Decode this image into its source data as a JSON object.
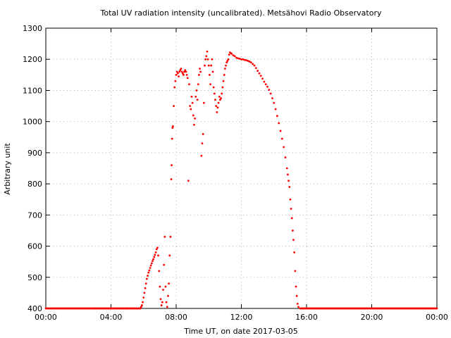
{
  "chart_data": {
    "type": "scatter",
    "title": "Total UV radiation intensity (uncalibrated). Metsähovi Radio Observatory",
    "xlabel": "Time UT, on date 2017-03-05",
    "ylabel": "Arbitrary unit",
    "x_unit": "hours UT",
    "xlim": [
      0,
      24
    ],
    "ylim": [
      400,
      1300
    ],
    "x_ticks": [
      0,
      4,
      8,
      12,
      16,
      20,
      24
    ],
    "x_tick_labels": [
      "00:00",
      "04:00",
      "08:00",
      "12:00",
      "16:00",
      "20:00",
      "00:00"
    ],
    "y_ticks": [
      400,
      500,
      600,
      700,
      800,
      900,
      1000,
      1100,
      1200,
      1300
    ],
    "y_tick_labels": [
      "400",
      "500",
      "600",
      "700",
      "800",
      "900",
      "1000",
      "1100",
      "1200",
      "1300"
    ],
    "grid": true,
    "marker_color": "#ff0000",
    "series": [
      {
        "points": [
          [
            0.0,
            400
          ],
          [
            1.0,
            400
          ],
          [
            2.0,
            400
          ],
          [
            3.0,
            400
          ],
          [
            4.0,
            400
          ],
          [
            5.0,
            400
          ],
          [
            5.8,
            400
          ],
          [
            5.85,
            405
          ],
          [
            5.9,
            410
          ],
          [
            5.95,
            420
          ],
          [
            6.0,
            435
          ],
          [
            6.05,
            450
          ],
          [
            6.1,
            465
          ],
          [
            6.15,
            480
          ],
          [
            6.2,
            495
          ],
          [
            6.25,
            505
          ],
          [
            6.3,
            515
          ],
          [
            6.35,
            522
          ],
          [
            6.4,
            530
          ],
          [
            6.45,
            538
          ],
          [
            6.5,
            545
          ],
          [
            6.55,
            552
          ],
          [
            6.6,
            558
          ],
          [
            6.65,
            565
          ],
          [
            6.7,
            572
          ],
          [
            6.75,
            580
          ],
          [
            6.8,
            590
          ],
          [
            6.85,
            595
          ],
          [
            6.9,
            570
          ],
          [
            6.95,
            520
          ],
          [
            7.0,
            470
          ],
          [
            7.05,
            430
          ],
          [
            7.1,
            410
          ],
          [
            7.15,
            420
          ],
          [
            7.2,
            460
          ],
          [
            7.25,
            540
          ],
          [
            7.3,
            630
          ],
          [
            7.35,
            470
          ],
          [
            7.4,
            420
          ],
          [
            7.45,
            405
          ],
          [
            7.5,
            440
          ],
          [
            7.55,
            480
          ],
          [
            7.6,
            570
          ],
          [
            7.65,
            630
          ],
          [
            7.7,
            815
          ],
          [
            7.72,
            860
          ],
          [
            7.75,
            945
          ],
          [
            7.78,
            980
          ],
          [
            7.8,
            985
          ],
          [
            7.85,
            1050
          ],
          [
            7.9,
            1110
          ],
          [
            7.95,
            1130
          ],
          [
            8.0,
            1150
          ],
          [
            8.05,
            1160
          ],
          [
            8.1,
            1155
          ],
          [
            8.15,
            1145
          ],
          [
            8.2,
            1160
          ],
          [
            8.25,
            1165
          ],
          [
            8.3,
            1170
          ],
          [
            8.35,
            1160
          ],
          [
            8.4,
            1155
          ],
          [
            8.45,
            1150
          ],
          [
            8.5,
            1160
          ],
          [
            8.55,
            1165
          ],
          [
            8.6,
            1160
          ],
          [
            8.65,
            1150
          ],
          [
            8.7,
            1140
          ],
          [
            8.75,
            810
          ],
          [
            8.8,
            1120
          ],
          [
            8.85,
            1050
          ],
          [
            8.9,
            1040
          ],
          [
            8.95,
            1080
          ],
          [
            9.0,
            1060
          ],
          [
            9.05,
            1020
          ],
          [
            9.1,
            990
          ],
          [
            9.15,
            1010
          ],
          [
            9.2,
            1080
          ],
          [
            9.25,
            1100
          ],
          [
            9.3,
            1070
          ],
          [
            9.35,
            1120
          ],
          [
            9.4,
            1150
          ],
          [
            9.45,
            1170
          ],
          [
            9.5,
            1160
          ],
          [
            9.55,
            890
          ],
          [
            9.6,
            930
          ],
          [
            9.65,
            960
          ],
          [
            9.7,
            1060
          ],
          [
            9.75,
            1180
          ],
          [
            9.8,
            1200
          ],
          [
            9.85,
            1210
          ],
          [
            9.9,
            1225
          ],
          [
            9.95,
            1200
          ],
          [
            10.0,
            1180
          ],
          [
            10.05,
            1150
          ],
          [
            10.1,
            1120
          ],
          [
            10.15,
            1180
          ],
          [
            10.2,
            1200
          ],
          [
            10.25,
            1160
          ],
          [
            10.3,
            1110
          ],
          [
            10.35,
            1090
          ],
          [
            10.4,
            1070
          ],
          [
            10.45,
            1050
          ],
          [
            10.5,
            1030
          ],
          [
            10.55,
            1045
          ],
          [
            10.6,
            1060
          ],
          [
            10.65,
            1080
          ],
          [
            10.7,
            1070
          ],
          [
            10.75,
            1075
          ],
          [
            10.8,
            1090
          ],
          [
            10.85,
            1110
          ],
          [
            10.9,
            1130
          ],
          [
            10.95,
            1150
          ],
          [
            11.0,
            1170
          ],
          [
            11.05,
            1180
          ],
          [
            11.1,
            1190
          ],
          [
            11.15,
            1195
          ],
          [
            11.2,
            1200
          ],
          [
            11.25,
            1215
          ],
          [
            11.3,
            1222
          ],
          [
            11.35,
            1220
          ],
          [
            11.4,
            1218
          ],
          [
            11.5,
            1213
          ],
          [
            11.6,
            1210
          ],
          [
            11.7,
            1205
          ],
          [
            11.8,
            1203
          ],
          [
            11.9,
            1202
          ],
          [
            12.0,
            1200
          ],
          [
            12.1,
            1200
          ],
          [
            12.2,
            1198
          ],
          [
            12.3,
            1197
          ],
          [
            12.4,
            1195
          ],
          [
            12.5,
            1193
          ],
          [
            12.6,
            1190
          ],
          [
            12.7,
            1185
          ],
          [
            12.8,
            1180
          ],
          [
            12.9,
            1172
          ],
          [
            13.0,
            1163
          ],
          [
            13.1,
            1155
          ],
          [
            13.2,
            1147
          ],
          [
            13.3,
            1138
          ],
          [
            13.4,
            1128
          ],
          [
            13.5,
            1120
          ],
          [
            13.6,
            1112
          ],
          [
            13.7,
            1102
          ],
          [
            13.8,
            1090
          ],
          [
            13.9,
            1075
          ],
          [
            14.0,
            1060
          ],
          [
            14.1,
            1040
          ],
          [
            14.2,
            1018
          ],
          [
            14.3,
            995
          ],
          [
            14.4,
            970
          ],
          [
            14.5,
            945
          ],
          [
            14.6,
            918
          ],
          [
            14.7,
            885
          ],
          [
            14.8,
            850
          ],
          [
            14.85,
            830
          ],
          [
            14.9,
            810
          ],
          [
            14.95,
            790
          ],
          [
            15.0,
            750
          ],
          [
            15.05,
            720
          ],
          [
            15.1,
            690
          ],
          [
            15.15,
            650
          ],
          [
            15.2,
            620
          ],
          [
            15.25,
            580
          ],
          [
            15.3,
            520
          ],
          [
            15.35,
            470
          ],
          [
            15.4,
            440
          ],
          [
            15.45,
            415
          ],
          [
            15.5,
            405
          ],
          [
            15.6,
            400
          ],
          [
            16.0,
            400
          ],
          [
            17.0,
            400
          ],
          [
            18.0,
            400
          ],
          [
            19.0,
            400
          ],
          [
            20.0,
            400
          ],
          [
            21.0,
            400
          ],
          [
            22.0,
            400
          ],
          [
            23.0,
            400
          ],
          [
            24.0,
            400
          ]
        ]
      }
    ]
  }
}
